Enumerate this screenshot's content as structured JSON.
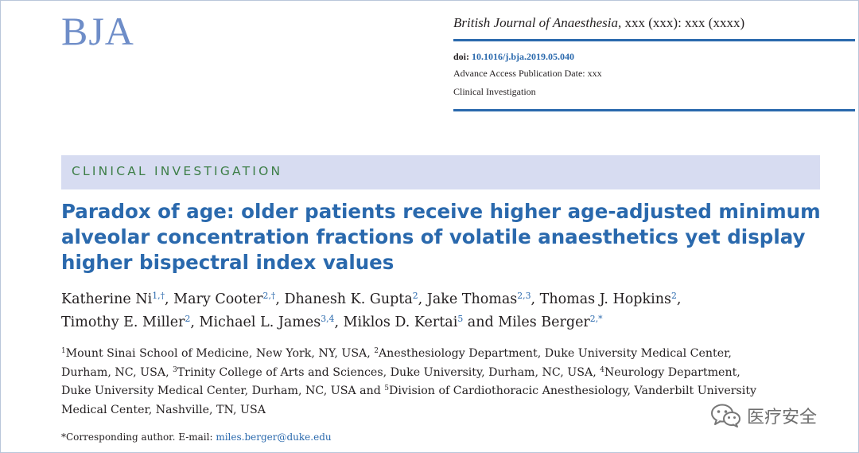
{
  "logo": {
    "text": "BJA"
  },
  "header": {
    "journal_name": "British Journal of Anaesthesia",
    "journal_ref": ", xxx (xxx): xxx (xxxx)",
    "doi_label": "doi:",
    "doi_value": "10.1016/j.bja.2019.05.040",
    "publication_date": "Advance Access Publication Date: xxx",
    "section": "Clinical Investigation"
  },
  "banner": {
    "label": "CLINICAL INVESTIGATION"
  },
  "title": {
    "lines": [
      "Paradox of age: older patients receive higher age-adjusted minimum",
      "alveolar concentration fractions of volatile anaesthetics yet display",
      "higher bispectral index values"
    ]
  },
  "authors": [
    {
      "name": "Katherine Ni",
      "sup": "1,†",
      "sep": ", "
    },
    {
      "name": "Mary Cooter",
      "sup": "2,†",
      "sep": ", "
    },
    {
      "name": "Dhanesh K. Gupta",
      "sup": "2",
      "sep": ", "
    },
    {
      "name": "Jake Thomas",
      "sup": "2,3",
      "sep": ", "
    },
    {
      "name": "Thomas J. Hopkins",
      "sup": "2",
      "sep": ","
    },
    {
      "name": "Timothy E. Miller",
      "sup": "2",
      "sep": ", "
    },
    {
      "name": "Michael L. James",
      "sup": "3,4",
      "sep": ", "
    },
    {
      "name": "Miklos D. Kertai",
      "sup": "5",
      "sep": " and "
    },
    {
      "name": "Miles Berger",
      "sup": "2,*",
      "sep": ""
    }
  ],
  "affiliations": {
    "l1_sup1": "1",
    "l1_text1": "Mount Sinai School of Medicine, New York, NY, USA, ",
    "l1_sup2": "2",
    "l1_text2": "Anesthesiology Department, Duke University Medical Center,",
    "l2_text1": "Durham, NC, USA, ",
    "l2_sup3": "3",
    "l2_text2": "Trinity College of Arts and Sciences, Duke University, Durham, NC, USA, ",
    "l2_sup4": "4",
    "l2_text3": "Neurology Department,",
    "l3_text1": "Duke University Medical Center, Durham, NC, USA and ",
    "l3_sup5": "5",
    "l3_text2": "Division of Cardiothoracic Anesthesiology, Vanderbilt University",
    "l4_text1": "Medical Center, Nashville, TN, USA"
  },
  "corresponding": {
    "label": "*Corresponding author. E-mail: ",
    "email": "miles.berger@duke.edu"
  },
  "watermark": {
    "icon": "wechat-icon",
    "text": "医疗安全"
  }
}
